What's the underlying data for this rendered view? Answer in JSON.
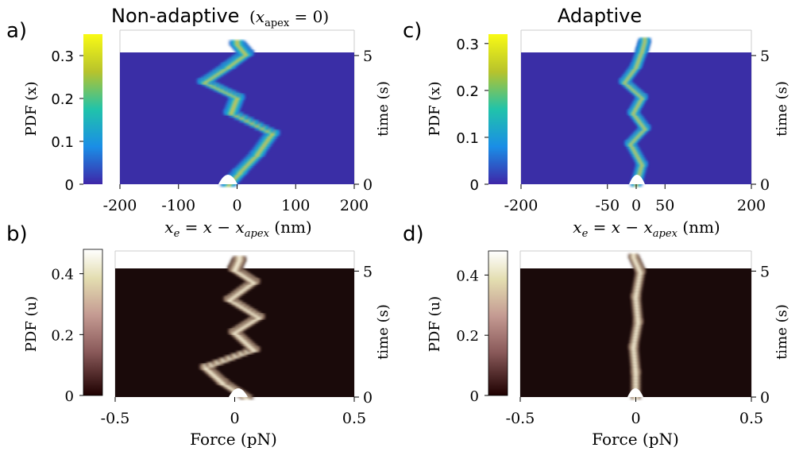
{
  "chart_data": [
    {
      "panel": "a)",
      "type": "heatmap",
      "title": "Non-adaptive",
      "title_math": "(x_apex = 0)",
      "colormap": "parula",
      "xlabel": "x_e = x − x_apex (nm)",
      "xlim": [
        -200,
        200
      ],
      "xticks": [
        "-200",
        "-100",
        "0",
        "100",
        "200"
      ],
      "ylabel_left": "PDF (x)",
      "ylim_pdf": [
        0,
        0.35
      ],
      "yticks_left": [
        "0",
        "0.1",
        "0.2",
        "0.3"
      ],
      "ylabel_right": "time (s)",
      "ylim_time": [
        0,
        5.8
      ],
      "yticks_right": [
        "0",
        "5"
      ],
      "peak_time": [
        0,
        0.5,
        1.2,
        2.0,
        2.8,
        3.4,
        4.0,
        4.6,
        5.1,
        5.5
      ],
      "peak_center": [
        -15,
        5,
        35,
        60,
        -10,
        0,
        -55,
        -15,
        15,
        0
      ],
      "peak_width": 12
    },
    {
      "panel": "b)",
      "type": "heatmap",
      "colormap": "pink",
      "xlabel": "Force (pN)",
      "xlim": [
        -0.5,
        0.5
      ],
      "xticks": [
        "-0.5",
        "0",
        "0.5"
      ],
      "ylabel_left": "PDF (u)",
      "ylim_pdf": [
        0,
        0.48
      ],
      "yticks_left": [
        "0",
        "0.2",
        "0.4"
      ],
      "ylabel_right": "time (s)",
      "ylim_time": [
        0,
        5.8
      ],
      "yticks_right": [
        "0",
        "5"
      ],
      "peak_time": [
        0,
        0.6,
        1.2,
        1.9,
        2.6,
        3.2,
        3.9,
        4.6,
        5.1,
        5.5
      ],
      "peak_center": [
        0.05,
        -0.05,
        -0.12,
        0.08,
        0.0,
        0.1,
        -0.02,
        0.08,
        0.0,
        0.02
      ],
      "peak_width": 0.025
    },
    {
      "panel": "c)",
      "type": "heatmap",
      "title": "Adaptive",
      "colormap": "parula",
      "xlabel": "x_e = x − x_apex (nm)",
      "xlim": [
        -200,
        200
      ],
      "xticks": [
        "-200",
        "-50",
        "0",
        "50",
        "200"
      ],
      "xtick_values": [
        -200,
        -50,
        0,
        50,
        200
      ],
      "ylabel_left": "PDF (x)",
      "ylim_pdf": [
        0,
        0.32
      ],
      "yticks_left": [
        "0",
        "0.1",
        "0.2",
        "0.3"
      ],
      "ylabel_right": "time (s)",
      "ylim_time": [
        0,
        5.8
      ],
      "yticks_right": [
        "0",
        "5"
      ],
      "peak_time": [
        0,
        0.8,
        1.6,
        2.2,
        2.8,
        3.4,
        4.0,
        4.6,
        5.2,
        5.6
      ],
      "peak_center": [
        0,
        10,
        -10,
        15,
        -5,
        10,
        -20,
        0,
        10,
        15
      ],
      "peak_width": 9
    },
    {
      "panel": "d)",
      "type": "heatmap",
      "colormap": "pink",
      "xlabel": "Force (pN)",
      "xlim": [
        -0.5,
        0.5
      ],
      "xticks": [
        "-0.5",
        "0",
        "0.5"
      ],
      "ylabel_left": "PDF (u)",
      "ylim_pdf": [
        0,
        0.48
      ],
      "yticks_left": [
        "0",
        "0.2",
        "0.4"
      ],
      "ylabel_right": "time (s)",
      "ylim_time": [
        0,
        5.8
      ],
      "yticks_right": [
        "0",
        "5"
      ],
      "peak_time": [
        0,
        1.0,
        2.0,
        3.0,
        4.0,
        5.0,
        5.6
      ],
      "peak_center": [
        0.0,
        0.0,
        -0.01,
        0.01,
        0.0,
        0.02,
        -0.01
      ],
      "peak_width": 0.02
    }
  ],
  "colors": {
    "parula_bg": "#3a2ea6",
    "pink_bg": "#1a0a0a"
  }
}
